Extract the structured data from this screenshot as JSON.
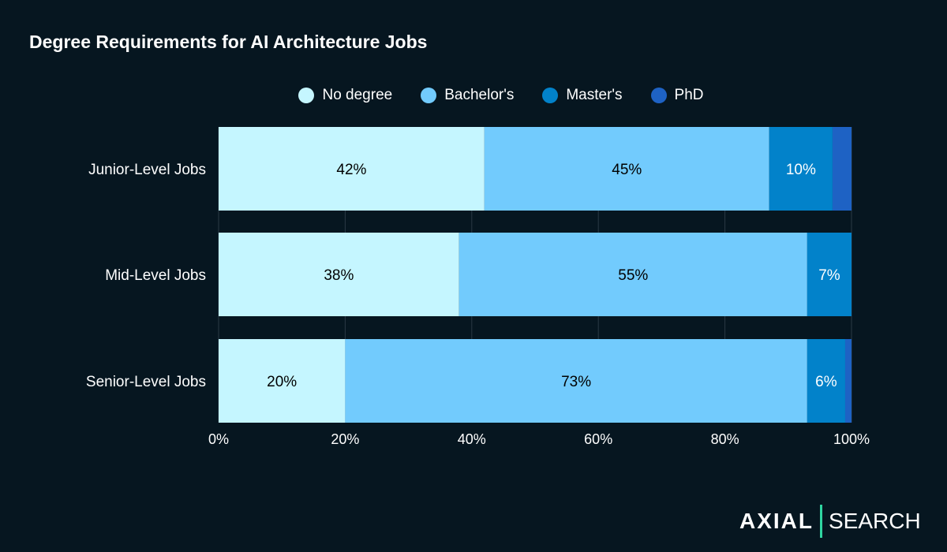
{
  "chart_data": {
    "type": "bar",
    "orientation": "horizontal",
    "stacked": true,
    "title": "Degree Requirements for AI Architecture Jobs",
    "categories": [
      "Junior-Level Jobs",
      "Mid-Level Jobs",
      "Senior-Level Jobs"
    ],
    "series": [
      {
        "name": "No degree",
        "color": "#C5F6FF",
        "label_color": "#000000",
        "values": [
          42,
          38,
          20
        ]
      },
      {
        "name": "Bachelor's",
        "color": "#72CBFD",
        "label_color": "#000000",
        "values": [
          45,
          55,
          73
        ]
      },
      {
        "name": "Master's",
        "color": "#0282CA",
        "label_color": "#FFFFFF",
        "values": [
          10,
          7,
          6
        ]
      },
      {
        "name": "PhD",
        "color": "#1E62C4",
        "label_color": "#FFFFFF",
        "values": [
          3,
          0,
          1
        ]
      }
    ],
    "xlim": [
      0,
      100
    ],
    "xticks": [
      "0%",
      "20%",
      "40%",
      "60%",
      "80%",
      "100%"
    ],
    "grid": true,
    "legend_position": "top",
    "background": "#061620"
  },
  "logo": {
    "left": "AXIAL",
    "right": "SEARCH",
    "accent": "#2FD5A0"
  }
}
